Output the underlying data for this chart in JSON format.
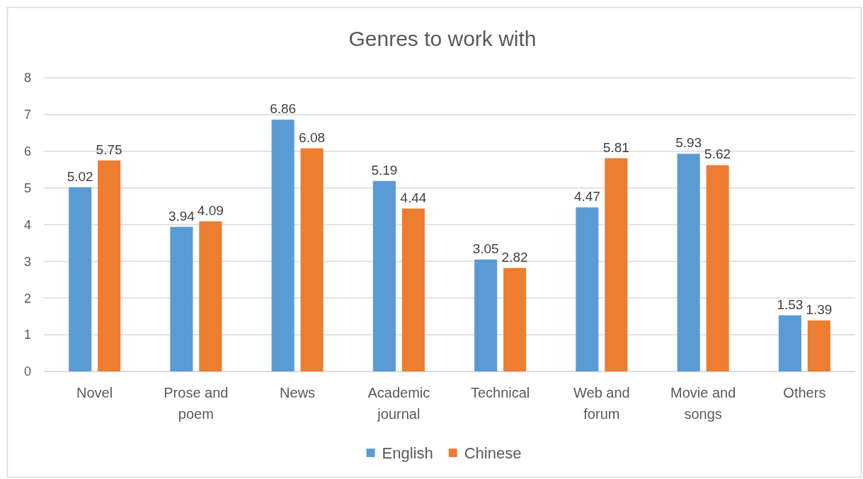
{
  "chart_data": {
    "type": "bar",
    "title": "Genres to work with",
    "categories": [
      "Novel",
      "Prose and poem",
      "News",
      "Academic journal",
      "Technical",
      "Web and forum",
      "Movie and songs",
      "Others"
    ],
    "series": [
      {
        "name": "English",
        "color": "#5b9bd5",
        "values": [
          5.02,
          3.94,
          6.86,
          5.19,
          3.05,
          4.47,
          5.93,
          1.53
        ]
      },
      {
        "name": "Chinese",
        "color": "#ed7d31",
        "values": [
          5.75,
          4.09,
          6.08,
          4.44,
          2.82,
          5.81,
          5.62,
          1.39
        ]
      }
    ],
    "ylim": [
      0,
      8
    ],
    "yticks": [
      0,
      1,
      2,
      3,
      4,
      5,
      6,
      7,
      8
    ],
    "grid": "y",
    "data_labels": true,
    "legend": "bottom"
  }
}
